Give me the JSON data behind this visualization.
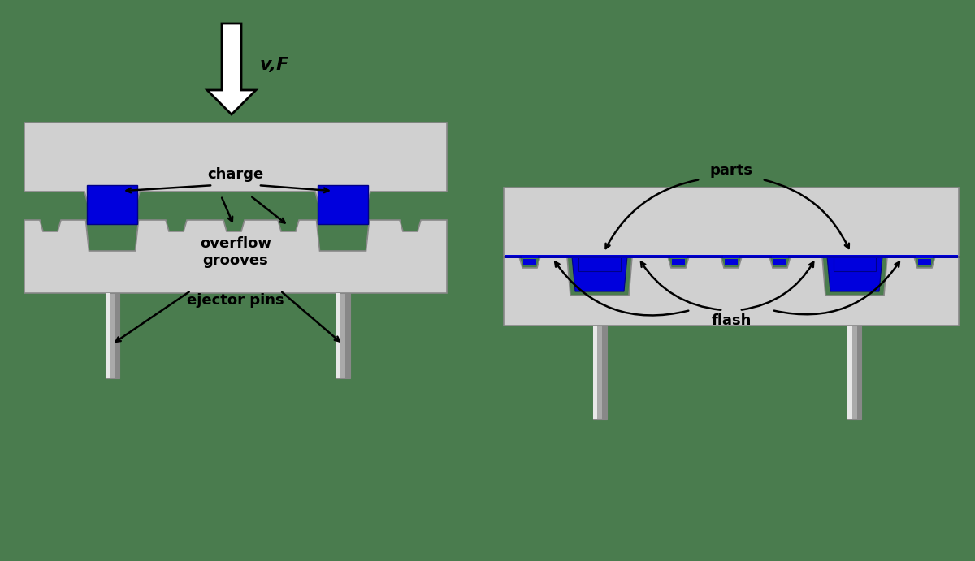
{
  "bg_color": "#4a7c4e",
  "mold_color": "#d0d0d0",
  "mold_edge": "#888888",
  "blue_color": "#0000dd",
  "blue_edge": "#000088",
  "pin_light": "#cccccc",
  "pin_mid": "#aaaaaa",
  "pin_dark": "#888888",
  "pin_highlight": "#e8e8e8",
  "label_fontsize": 13,
  "label_fontweight": "bold",
  "labels": {
    "charge": "charge",
    "overflow_grooves": "overflow\ngrooves",
    "ejector_pins": "ejector pins",
    "parts": "parts",
    "flash": "flash",
    "vF": "v,F"
  },
  "arrow_color": "#000000",
  "lw_mold": 1.2,
  "lw_arrow": 1.8
}
